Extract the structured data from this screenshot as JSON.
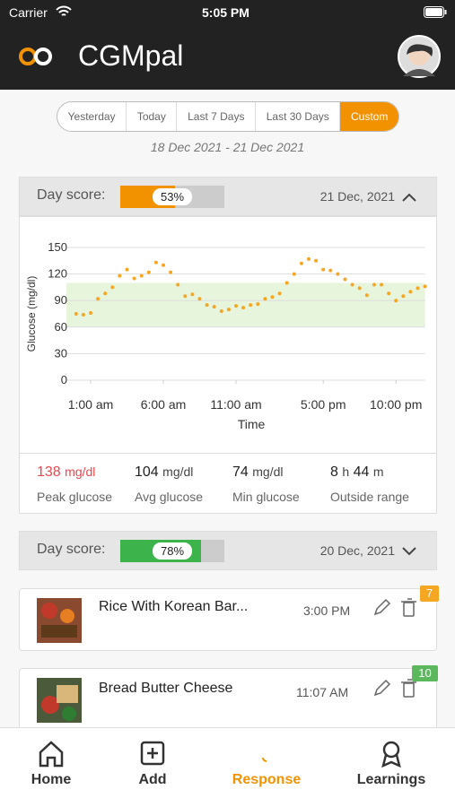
{
  "status_bar": {
    "carrier": "Carrier",
    "time": "5:05 PM"
  },
  "header": {
    "title": "CGMpal"
  },
  "filters": {
    "options": [
      "Yesterday",
      "Today",
      "Last 7 Days",
      "Last 30 Days",
      "Custom"
    ],
    "selected_index": 4,
    "date_range": "18 Dec 2021 - 21 Dec 2021"
  },
  "days": [
    {
      "label": "Day score:",
      "score": 53,
      "score_label": "53%",
      "color": "#f39200",
      "date": "21 Dec, 2021"
    },
    {
      "label": "Day score:",
      "score": 78,
      "score_label": "78%",
      "color": "#3cb44b",
      "date": "20 Dec, 2021"
    }
  ],
  "chart_data": {
    "type": "scatter",
    "y_label": "Glucose (mg/dl)",
    "x_label": "Time",
    "color": "#f5a623",
    "target_range": [
      60,
      110
    ],
    "target_color": "#e6f5dc",
    "grid": true,
    "x": [
      0,
      0.5,
      1,
      1.5,
      2,
      2.5,
      3,
      3.5,
      4,
      4.5,
      5,
      5.5,
      6,
      6.5,
      7,
      7.5,
      8,
      8.5,
      9,
      9.5,
      10,
      10.5,
      11,
      11.5,
      12,
      12.5,
      13,
      13.5,
      14,
      14.5,
      15,
      15.5,
      16,
      16.5,
      17,
      17.5,
      18,
      18.5,
      19,
      19.5,
      20,
      20.5,
      21,
      21.5,
      22,
      22.5,
      23,
      23.5,
      24
    ],
    "values": [
      75,
      74,
      76,
      92,
      98,
      105,
      118,
      125,
      115,
      118,
      122,
      133,
      130,
      122,
      108,
      95,
      97,
      92,
      85,
      83,
      78,
      80,
      84,
      82,
      85,
      86,
      92,
      94,
      98,
      110,
      120,
      132,
      137,
      135,
      125,
      124,
      120,
      114,
      108,
      104,
      96,
      108,
      108,
      98,
      90,
      95,
      100,
      104,
      106
    ],
    "xlim": [
      -0.5,
      24
    ],
    "ylim": [
      0,
      150
    ],
    "yticks": [
      0,
      30,
      60,
      90,
      120,
      150
    ],
    "xticks": [
      {
        "value": 1,
        "label": "1:00 am"
      },
      {
        "value": 6,
        "label": "6:00 am"
      },
      {
        "value": 11,
        "label": "11:00 am"
      },
      {
        "value": 17,
        "label": "5:00 pm"
      },
      {
        "value": 22,
        "label": "10:00 pm"
      }
    ]
  },
  "stats": [
    {
      "value": "138",
      "unit": "mg/dl",
      "label": "Peak glucose"
    },
    {
      "value": "104",
      "unit": "mg/dl",
      "label": "Avg glucose"
    },
    {
      "value": "74",
      "unit": "mg/dl",
      "label": "Min glucose"
    },
    {
      "hours": "8",
      "h": "h",
      "minutes": "44",
      "m": "m",
      "label": "Outside range"
    }
  ],
  "meals": [
    {
      "name": "Rice With Korean Bar...",
      "time": "3:00 PM",
      "badge": "7",
      "badge_color": "#f5a623"
    },
    {
      "name": "Bread Butter Cheese",
      "time": "11:07 AM",
      "badge": "10",
      "badge_color": "#5cb85c"
    }
  ],
  "tabs": {
    "items": [
      "Home",
      "Add",
      "Response",
      "Learnings"
    ],
    "active_index": 2
  }
}
